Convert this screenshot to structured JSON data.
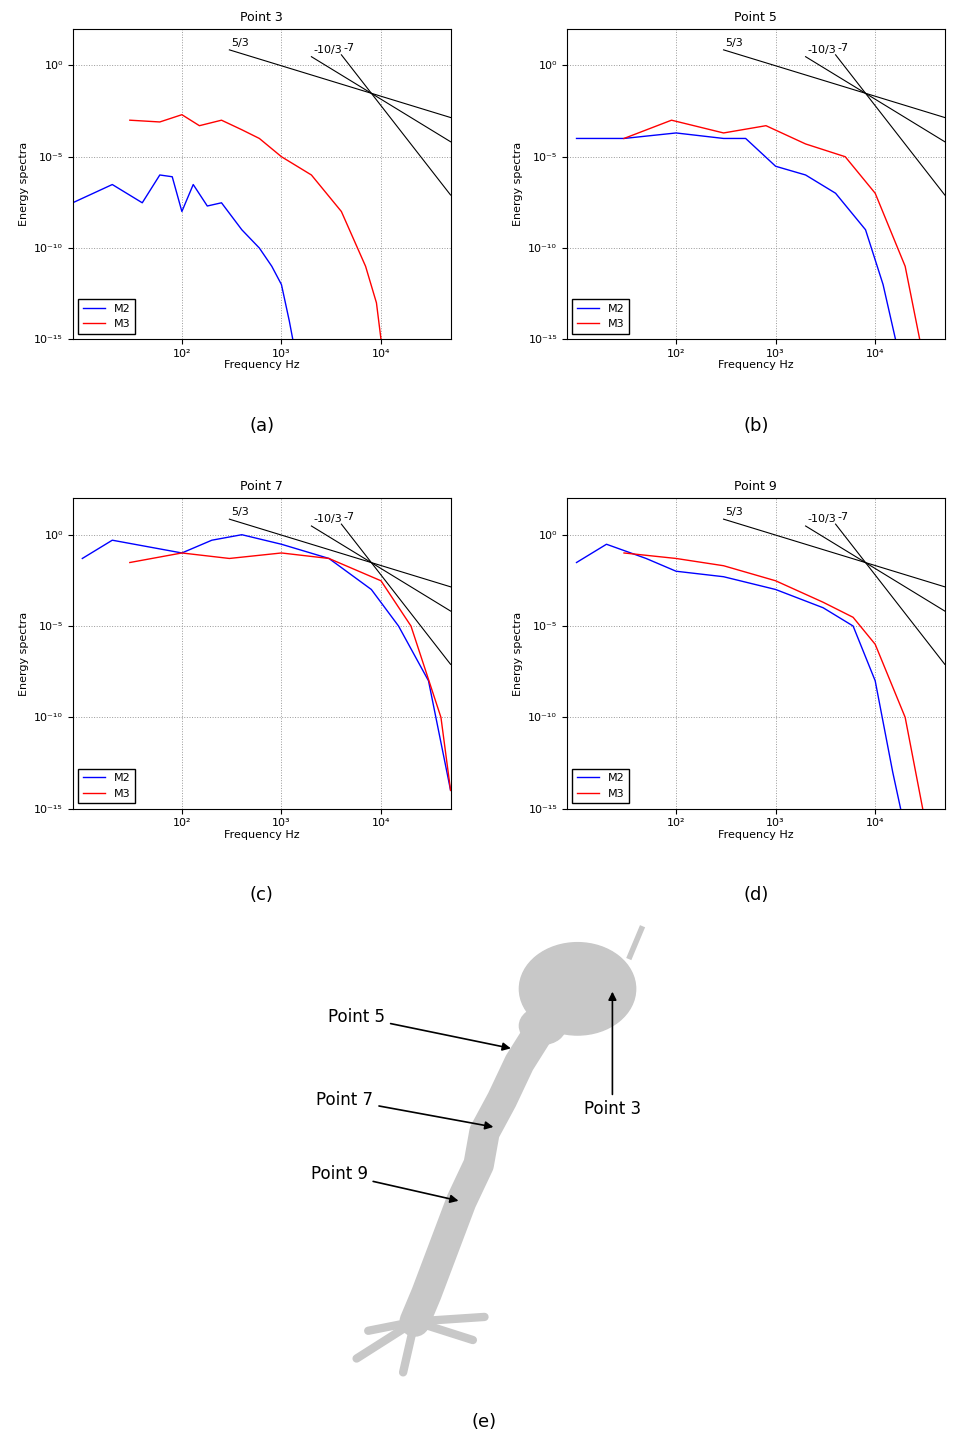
{
  "chart_data": [
    {
      "type": "line",
      "title": "Point 3",
      "caption": "(a)",
      "x_label": "Frequency Hz",
      "y_label": "Energy spectra",
      "log": true,
      "grid": true,
      "legend": "lower left",
      "xlim": [
        8,
        50000
      ],
      "ylim": [
        1e-15,
        100
      ],
      "xticks": [
        {
          "value": 100,
          "label": "10²"
        },
        {
          "value": 1000,
          "label": "10³"
        },
        {
          "value": 10000,
          "label": "10⁴"
        }
      ],
      "yticks": [
        {
          "value": 1e-15,
          "label": "10⁻¹⁵"
        },
        {
          "value": 1e-10,
          "label": "10⁻¹⁰"
        },
        {
          "value": 1e-05,
          "label": "10⁻⁵"
        },
        {
          "value": 1,
          "label": "10⁰"
        }
      ],
      "series": [
        {
          "name": "M2",
          "color": "#0000ff",
          "x": [
            8,
            20,
            40,
            60,
            80,
            100,
            130,
            180,
            250,
            400,
            600,
            800,
            1000,
            1200,
            1300
          ],
          "values": [
            3e-08,
            3e-07,
            3e-08,
            1e-06,
            8e-07,
            1e-08,
            3e-07,
            2e-08,
            3e-08,
            1e-09,
            1e-10,
            1e-11,
            1e-12,
            1e-14,
            1e-15
          ]
        },
        {
          "name": "M3",
          "color": "#ff0000",
          "x": [
            30,
            60,
            100,
            150,
            250,
            400,
            600,
            1000,
            2000,
            4000,
            7000,
            9000,
            10000
          ],
          "values": [
            0.001,
            0.0008,
            0.002,
            0.0005,
            0.001,
            0.0003,
            0.0001,
            1e-05,
            1e-06,
            1e-08,
            1e-11,
            1e-13,
            1e-15
          ]
        }
      ],
      "reference_lines": [
        {
          "label": "5/3",
          "x": [
            300,
            50000
          ],
          "values": [
            7.1,
            0.0014
          ]
        },
        {
          "label": "-10/3",
          "x": [
            2000,
            50000
          ],
          "values": [
            3.0,
            6.6e-05
          ]
        },
        {
          "label": "-7",
          "x": [
            4000,
            50000
          ],
          "values": [
            3.8,
            8e-08
          ]
        }
      ]
    },
    {
      "type": "line",
      "title": "Point 5",
      "caption": "(b)",
      "x_label": "Frequency Hz",
      "y_label": "Energy spectra",
      "log": true,
      "grid": true,
      "legend": "lower left",
      "xlim": [
        8,
        50000
      ],
      "ylim": [
        1e-15,
        100
      ],
      "xticks": [
        {
          "value": 100,
          "label": "10²"
        },
        {
          "value": 1000,
          "label": "10³"
        },
        {
          "value": 10000,
          "label": "10⁴"
        }
      ],
      "yticks": [
        {
          "value": 1e-15,
          "label": "10⁻¹⁵"
        },
        {
          "value": 1e-10,
          "label": "10⁻¹⁰"
        },
        {
          "value": 1e-05,
          "label": "10⁻⁵"
        },
        {
          "value": 1,
          "label": "10⁰"
        }
      ],
      "series": [
        {
          "name": "M2",
          "color": "#0000ff",
          "x": [
            10,
            30,
            100,
            300,
            500,
            1000,
            2000,
            4000,
            8000,
            12000,
            16000
          ],
          "values": [
            0.0001,
            0.0001,
            0.0002,
            0.0001,
            0.0001,
            3e-06,
            1e-06,
            1e-07,
            1e-09,
            1e-12,
            1e-15
          ]
        },
        {
          "name": "M3",
          "color": "#ff0000",
          "x": [
            30,
            90,
            300,
            800,
            2000,
            5000,
            10000,
            20000,
            28000
          ],
          "values": [
            0.0001,
            0.001,
            0.0002,
            0.0005,
            5e-05,
            1e-05,
            1e-07,
            1e-11,
            1e-15
          ]
        }
      ],
      "reference_lines": [
        {
          "label": "5/3",
          "x": [
            300,
            50000
          ],
          "values": [
            7.1,
            0.0014
          ]
        },
        {
          "label": "-10/3",
          "x": [
            2000,
            50000
          ],
          "values": [
            3.0,
            6.6e-05
          ]
        },
        {
          "label": "-7",
          "x": [
            4000,
            50000
          ],
          "values": [
            3.8,
            8e-08
          ]
        }
      ]
    },
    {
      "type": "line",
      "title": "Point 7",
      "caption": "(c)",
      "x_label": "Frequency Hz",
      "y_label": "Energy spectra",
      "log": true,
      "grid": true,
      "legend": "lower left",
      "xlim": [
        8,
        50000
      ],
      "ylim": [
        1e-15,
        100
      ],
      "xticks": [
        {
          "value": 100,
          "label": "10²"
        },
        {
          "value": 1000,
          "label": "10³"
        },
        {
          "value": 10000,
          "label": "10⁴"
        }
      ],
      "yticks": [
        {
          "value": 1e-15,
          "label": "10⁻¹⁵"
        },
        {
          "value": 1e-10,
          "label": "10⁻¹⁰"
        },
        {
          "value": 1e-05,
          "label": "10⁻⁵"
        },
        {
          "value": 1,
          "label": "10⁰"
        }
      ],
      "series": [
        {
          "name": "M2",
          "color": "#0000ff",
          "x": [
            10,
            20,
            100,
            200,
            400,
            1000,
            3000,
            8000,
            15000,
            30000,
            50000
          ],
          "values": [
            0.05,
            0.5,
            0.1,
            0.5,
            1,
            0.3,
            0.05,
            0.001,
            1e-05,
            1e-08,
            1e-14
          ]
        },
        {
          "name": "M3",
          "color": "#ff0000",
          "x": [
            30,
            100,
            300,
            1000,
            3000,
            10000,
            20000,
            40000,
            50000
          ],
          "values": [
            0.03,
            0.1,
            0.05,
            0.1,
            0.05,
            0.003,
            1e-05,
            1e-10,
            1e-14
          ]
        }
      ],
      "reference_lines": [
        {
          "label": "5/3",
          "x": [
            300,
            50000
          ],
          "values": [
            7.1,
            0.0014
          ]
        },
        {
          "label": "-10/3",
          "x": [
            2000,
            50000
          ],
          "values": [
            3.0,
            6.6e-05
          ]
        },
        {
          "label": "-7",
          "x": [
            4000,
            50000
          ],
          "values": [
            3.8,
            8e-08
          ]
        }
      ]
    },
    {
      "type": "line",
      "title": "Point 9",
      "caption": "(d)",
      "x_label": "Frequency Hz",
      "y_label": "Energy spectra",
      "log": true,
      "grid": true,
      "legend": "lower left",
      "xlim": [
        8,
        50000
      ],
      "ylim": [
        1e-15,
        100
      ],
      "xticks": [
        {
          "value": 100,
          "label": "10²"
        },
        {
          "value": 1000,
          "label": "10³"
        },
        {
          "value": 10000,
          "label": "10⁴"
        }
      ],
      "yticks": [
        {
          "value": 1e-15,
          "label": "10⁻¹⁵"
        },
        {
          "value": 1e-10,
          "label": "10⁻¹⁰"
        },
        {
          "value": 1e-05,
          "label": "10⁻⁵"
        },
        {
          "value": 1,
          "label": "10⁰"
        }
      ],
      "series": [
        {
          "name": "M2",
          "color": "#0000ff",
          "x": [
            10,
            20,
            50,
            100,
            300,
            1000,
            3000,
            6000,
            10000,
            15000,
            18000
          ],
          "values": [
            0.03,
            0.3,
            0.05,
            0.01,
            0.005,
            0.001,
            0.0001,
            1e-05,
            1e-08,
            1e-13,
            1e-15
          ]
        },
        {
          "name": "M3",
          "color": "#ff0000",
          "x": [
            30,
            100,
            300,
            1000,
            3000,
            6000,
            10000,
            20000,
            30000
          ],
          "values": [
            0.1,
            0.05,
            0.02,
            0.003,
            0.0002,
            3e-05,
            1e-06,
            1e-10,
            1e-15
          ]
        }
      ],
      "reference_lines": [
        {
          "label": "5/3",
          "x": [
            300,
            50000
          ],
          "values": [
            7.1,
            0.0014
          ]
        },
        {
          "label": "-10/3",
          "x": [
            2000,
            50000
          ],
          "values": [
            3.0,
            6.6e-05
          ]
        },
        {
          "label": "-7",
          "x": [
            4000,
            50000
          ],
          "values": [
            3.8,
            8e-08
          ]
        }
      ]
    }
  ],
  "diagram": {
    "caption": "(e)",
    "labels": [
      "Point 5",
      "Point 3",
      "Point 7",
      "Point 9"
    ]
  }
}
